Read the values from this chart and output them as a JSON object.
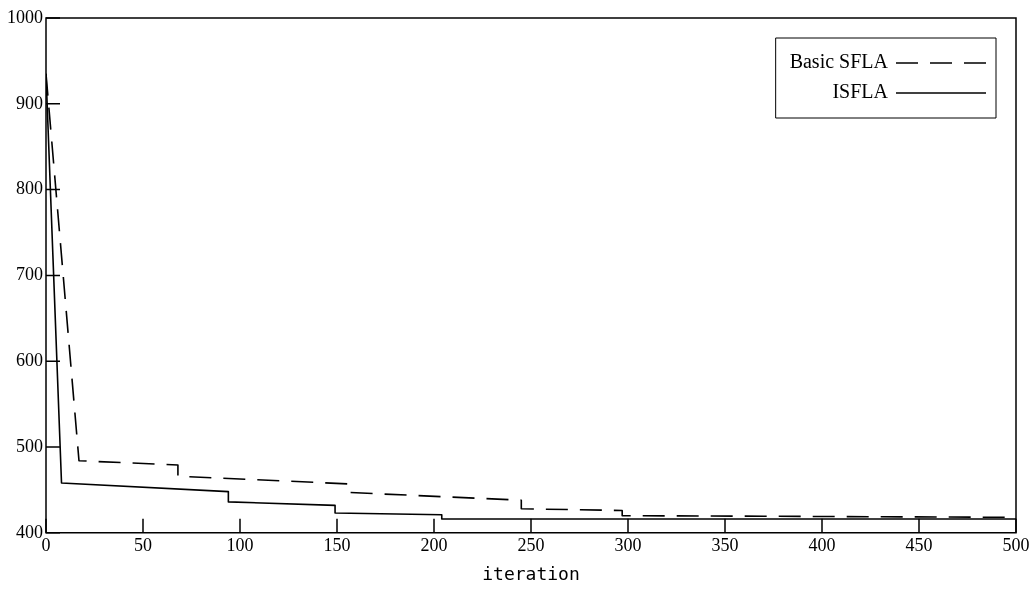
{
  "chart_data": {
    "type": "line",
    "xlabel": "iteration",
    "xlim": [
      0,
      500
    ],
    "xticks": [
      0,
      50,
      100,
      150,
      200,
      250,
      300,
      350,
      400,
      450,
      500
    ],
    "ylim": [
      400,
      1000
    ],
    "yticks": [
      400,
      500,
      600,
      700,
      800,
      900,
      1000
    ],
    "grid": false,
    "legend": "top right",
    "marker": "none",
    "series": [
      {
        "name": "Basic SFLA",
        "color": "#000000",
        "line_style": "dashed",
        "x": [
          0,
          17,
          68,
          68,
          156,
          156,
          245,
          245,
          297,
          297,
          500
        ],
        "values": [
          935,
          484,
          479,
          466,
          457,
          447,
          438,
          428,
          426,
          420,
          418
        ]
      },
      {
        "name": "ISFLA",
        "color": "#000000",
        "line_style": "solid",
        "x": [
          0,
          8,
          94,
          94,
          149,
          149,
          204,
          204,
          500
        ],
        "values": [
          935,
          458,
          448,
          436,
          432,
          423,
          421,
          416,
          416
        ]
      }
    ]
  }
}
